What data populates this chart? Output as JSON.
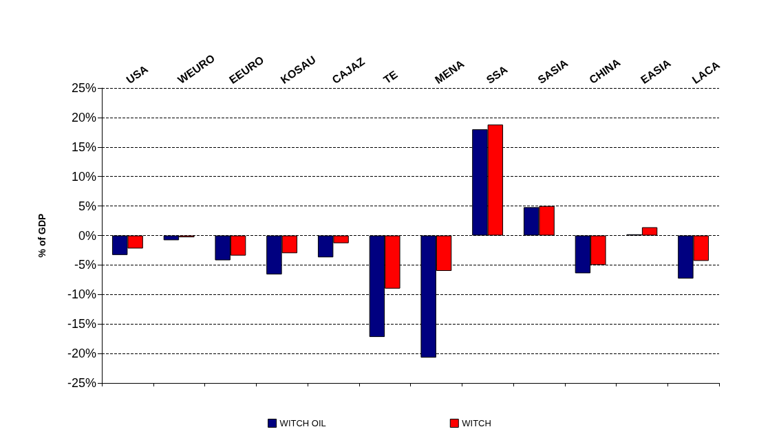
{
  "chart_data": {
    "type": "bar",
    "ylabel": "% of GDP",
    "categories": [
      "USA",
      "WEURO",
      "EEURO",
      "KOSAU",
      "CAJAZ",
      "TE",
      "MENA",
      "SSA",
      "SASIA",
      "CHINA",
      "EASIA",
      "LACA"
    ],
    "series": [
      {
        "name": "WITCH OIL",
        "color": "#000080",
        "values": [
          -3.3,
          -0.8,
          -4.2,
          -6.6,
          -3.7,
          -17.2,
          -20.7,
          18.0,
          4.8,
          -6.4,
          0.2,
          -7.3
        ]
      },
      {
        "name": "WITCH",
        "color": "#ff0000",
        "values": [
          -2.2,
          -0.3,
          -3.4,
          -3.0,
          -1.3,
          -9.0,
          -6.0,
          18.8,
          5.0,
          -5.0,
          1.4,
          -4.3
        ]
      }
    ],
    "ylim": [
      -25,
      25
    ],
    "yticks": [
      {
        "value": -25,
        "label": "-25%"
      },
      {
        "value": -20,
        "label": "-20%"
      },
      {
        "value": -15,
        "label": "-15%"
      },
      {
        "value": -10,
        "label": "-10%"
      },
      {
        "value": -5,
        "label": "-5%"
      },
      {
        "value": 0,
        "label": "0%"
      },
      {
        "value": 5,
        "label": "5%"
      },
      {
        "value": 10,
        "label": "10%"
      },
      {
        "value": 15,
        "label": "15%"
      },
      {
        "value": 20,
        "label": "20%"
      },
      {
        "value": 25,
        "label": "25%"
      }
    ],
    "grid": "y",
    "legend": "bottom"
  }
}
